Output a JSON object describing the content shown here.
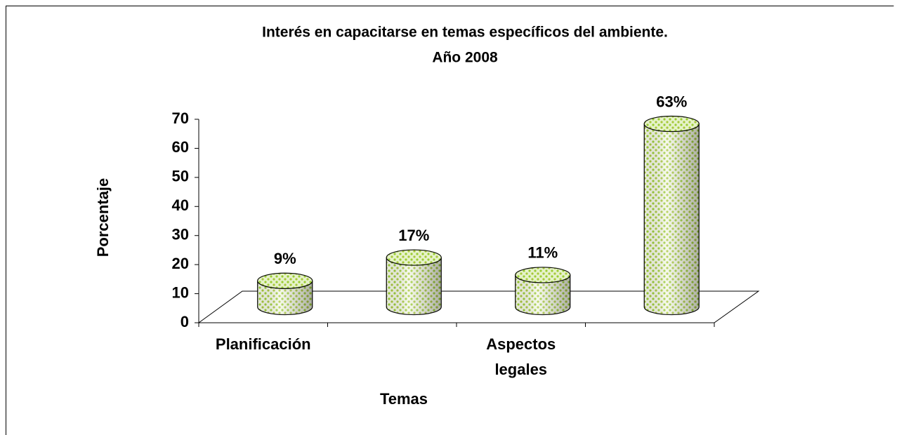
{
  "chart_data": {
    "type": "bar",
    "title": [
      "Interés en capacitarse en temas específicos del ambiente.",
      "Año 2008"
    ],
    "x_label": "Temas",
    "y_label": "Porcentaje",
    "categories": [
      "Planificación",
      null,
      "Aspectos legales",
      null
    ],
    "values": [
      9,
      17,
      11,
      63
    ],
    "value_labels": [
      "9%",
      "17%",
      "11%",
      "63%"
    ],
    "color": "#9acd32",
    "ylim": [
      0,
      70
    ],
    "yticks": [
      0,
      10,
      20,
      30,
      40,
      50,
      60,
      70
    ]
  }
}
